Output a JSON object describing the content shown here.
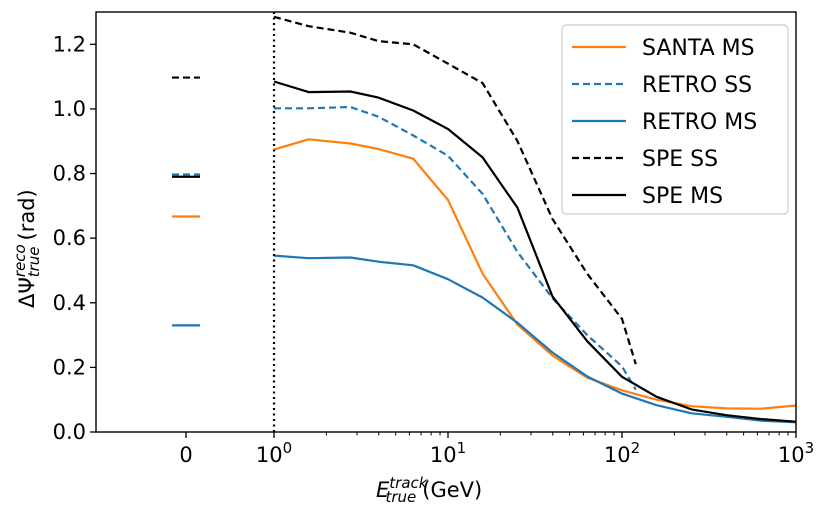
{
  "chart_data": {
    "type": "line",
    "xlabel": {
      "main": "E",
      "sup": "track",
      "sub": "true",
      "unit": "(GeV)"
    },
    "ylabel": {
      "main": "ΔΨ",
      "sup": "reco",
      "sub": "true",
      "unit": "(rad)"
    },
    "x_scale": "log",
    "xlim": [
      1,
      1000
    ],
    "ylim": [
      0,
      1.3
    ],
    "x_ticks": [
      {
        "value": 1,
        "base": "10",
        "exp": "0"
      },
      {
        "value": 10,
        "base": "10",
        "exp": "1"
      },
      {
        "value": 100,
        "base": "10",
        "exp": "2"
      },
      {
        "value": 1000,
        "base": "10",
        "exp": "3"
      }
    ],
    "extra_x_tick": {
      "label": "0"
    },
    "y_ticks": [
      "0.0",
      "0.2",
      "0.4",
      "0.6",
      "0.8",
      "1.0",
      "1.2"
    ],
    "y_tick_values": [
      0,
      0.2,
      0.4,
      0.6,
      0.8,
      1.0,
      1.2
    ],
    "grid": false,
    "legend_position": "top-right",
    "series": [
      {
        "name": "SANTA MS",
        "color": "#ff7f0e",
        "dash": "solid",
        "zero_value": 0.667,
        "x": [
          1,
          1.58,
          2.75,
          3.98,
          6.31,
          10,
          15.8,
          25.1,
          39.8,
          63.1,
          100,
          158,
          251,
          398,
          631,
          1000
        ],
        "y": [
          0.874,
          0.906,
          0.893,
          0.876,
          0.846,
          0.718,
          0.49,
          0.332,
          0.237,
          0.168,
          0.129,
          0.1,
          0.08,
          0.073,
          0.072,
          0.082
        ]
      },
      {
        "name": "RETRO SS",
        "color": "#1f77b4",
        "dash": "dashed",
        "zero_value": 0.797,
        "x": [
          1,
          1.58,
          2.75,
          3.98,
          6.31,
          10,
          15.8,
          25.1,
          39.8,
          63.1,
          100,
          120
        ],
        "y": [
          1.002,
          1.002,
          1.006,
          0.976,
          0.918,
          0.855,
          0.737,
          0.557,
          0.414,
          0.3,
          0.203,
          0.131
        ]
      },
      {
        "name": "RETRO MS",
        "color": "#1f77b4",
        "dash": "solid",
        "zero_value": 0.33,
        "x": [
          1,
          1.58,
          2.75,
          3.98,
          6.31,
          10,
          15.8,
          25.1,
          39.8,
          63.1,
          100,
          158,
          251,
          398,
          631,
          1000
        ],
        "y": [
          0.546,
          0.538,
          0.54,
          0.527,
          0.516,
          0.473,
          0.416,
          0.338,
          0.246,
          0.172,
          0.119,
          0.083,
          0.058,
          0.047,
          0.035,
          0.03
        ]
      },
      {
        "name": "SPE SS",
        "color": "#000000",
        "dash": "dashed",
        "zero_value": 1.097,
        "x": [
          1,
          1.58,
          2.75,
          3.98,
          6.31,
          10,
          15.8,
          25.1,
          39.8,
          63.1,
          100,
          120
        ],
        "y": [
          1.285,
          1.256,
          1.236,
          1.21,
          1.2,
          1.14,
          1.08,
          0.9,
          0.66,
          0.49,
          0.35,
          0.21
        ]
      },
      {
        "name": "SPE MS",
        "color": "#000000",
        "dash": "solid",
        "zero_value": 0.79,
        "x": [
          1,
          1.58,
          2.75,
          3.98,
          6.31,
          10,
          15.8,
          25.1,
          39.8,
          63.1,
          100,
          158,
          251,
          398,
          631,
          1000
        ],
        "y": [
          1.085,
          1.052,
          1.054,
          1.035,
          0.995,
          0.938,
          0.85,
          0.694,
          0.42,
          0.281,
          0.171,
          0.109,
          0.07,
          0.052,
          0.04,
          0.032
        ]
      }
    ]
  }
}
